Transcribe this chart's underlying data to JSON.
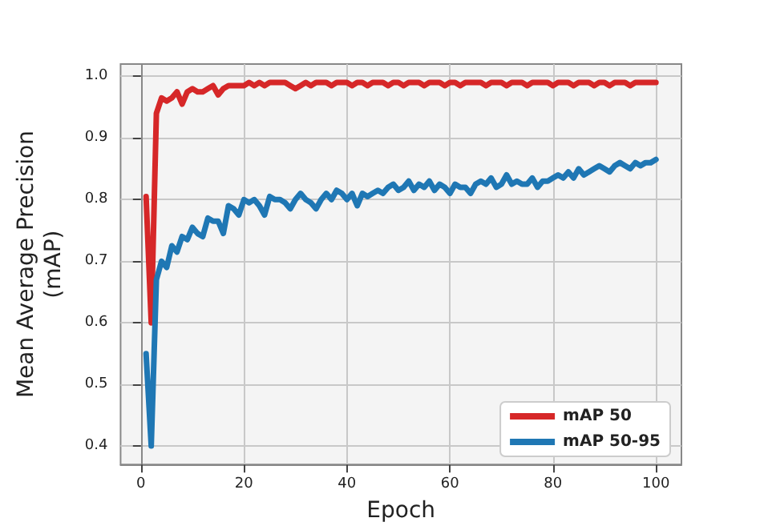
{
  "chart_data": {
    "type": "line",
    "xlabel": "Epoch",
    "ylabel": "Mean Average Precision\n(mAP)",
    "x": [
      1,
      2,
      3,
      4,
      5,
      6,
      7,
      8,
      9,
      10,
      11,
      12,
      13,
      14,
      15,
      16,
      17,
      18,
      19,
      20,
      21,
      22,
      23,
      24,
      25,
      26,
      27,
      28,
      29,
      30,
      31,
      32,
      33,
      34,
      35,
      36,
      37,
      38,
      39,
      40,
      41,
      42,
      43,
      44,
      45,
      46,
      47,
      48,
      49,
      50,
      51,
      52,
      53,
      54,
      55,
      56,
      57,
      58,
      59,
      60,
      61,
      62,
      63,
      64,
      65,
      66,
      67,
      68,
      69,
      70,
      71,
      72,
      73,
      74,
      75,
      76,
      77,
      78,
      79,
      80,
      81,
      82,
      83,
      84,
      85,
      86,
      87,
      88,
      89,
      90,
      91,
      92,
      93,
      94,
      95,
      96,
      97,
      98,
      99,
      100
    ],
    "series": [
      {
        "name": "mAP 50",
        "color": "#d62728",
        "values": [
          0.805,
          0.6,
          0.94,
          0.965,
          0.96,
          0.965,
          0.975,
          0.955,
          0.975,
          0.98,
          0.975,
          0.975,
          0.98,
          0.985,
          0.97,
          0.98,
          0.985,
          0.985,
          0.985,
          0.985,
          0.99,
          0.985,
          0.99,
          0.985,
          0.99,
          0.99,
          0.99,
          0.99,
          0.985,
          0.98,
          0.985,
          0.99,
          0.985,
          0.99,
          0.99,
          0.99,
          0.985,
          0.99,
          0.99,
          0.99,
          0.985,
          0.99,
          0.99,
          0.985,
          0.99,
          0.99,
          0.99,
          0.985,
          0.99,
          0.99,
          0.985,
          0.99,
          0.99,
          0.99,
          0.985,
          0.99,
          0.99,
          0.99,
          0.985,
          0.99,
          0.99,
          0.985,
          0.99,
          0.99,
          0.99,
          0.99,
          0.985,
          0.99,
          0.99,
          0.99,
          0.985,
          0.99,
          0.99,
          0.99,
          0.985,
          0.99,
          0.99,
          0.99,
          0.99,
          0.985,
          0.99,
          0.99,
          0.99,
          0.985,
          0.99,
          0.99,
          0.99,
          0.985,
          0.99,
          0.99,
          0.985,
          0.99,
          0.99,
          0.99,
          0.985,
          0.99,
          0.99,
          0.99,
          0.99,
          0.99
        ]
      },
      {
        "name": "mAP 50-95",
        "color": "#1f77b4",
        "values": [
          0.55,
          0.4,
          0.67,
          0.7,
          0.69,
          0.725,
          0.715,
          0.74,
          0.735,
          0.755,
          0.745,
          0.74,
          0.77,
          0.765,
          0.765,
          0.745,
          0.79,
          0.785,
          0.775,
          0.8,
          0.795,
          0.8,
          0.79,
          0.775,
          0.805,
          0.8,
          0.8,
          0.795,
          0.785,
          0.8,
          0.81,
          0.8,
          0.795,
          0.785,
          0.8,
          0.81,
          0.8,
          0.815,
          0.81,
          0.8,
          0.81,
          0.79,
          0.81,
          0.805,
          0.81,
          0.815,
          0.81,
          0.82,
          0.825,
          0.815,
          0.82,
          0.83,
          0.815,
          0.825,
          0.82,
          0.83,
          0.815,
          0.825,
          0.82,
          0.81,
          0.825,
          0.82,
          0.82,
          0.81,
          0.825,
          0.83,
          0.825,
          0.835,
          0.82,
          0.825,
          0.84,
          0.825,
          0.83,
          0.825,
          0.825,
          0.835,
          0.82,
          0.83,
          0.83,
          0.835,
          0.84,
          0.835,
          0.845,
          0.835,
          0.85,
          0.84,
          0.845,
          0.85,
          0.855,
          0.85,
          0.845,
          0.855,
          0.86,
          0.855,
          0.85,
          0.86,
          0.855,
          0.86,
          0.86,
          0.865
        ]
      }
    ],
    "xlim": [
      -3.95,
      104.95
    ],
    "ylim": [
      0.37,
      1.02
    ],
    "xticks": [
      0,
      20,
      40,
      60,
      80,
      100
    ],
    "yticks": [
      {
        "value": 0.4,
        "label": "0.4"
      },
      {
        "value": 0.5,
        "label": "0.5"
      },
      {
        "value": 0.6,
        "label": "0.6"
      },
      {
        "value": 0.7,
        "label": "0.7"
      },
      {
        "value": 0.8,
        "label": "0.8"
      },
      {
        "value": 0.9,
        "label": "0.9"
      },
      {
        "value": 1.0,
        "label": "1.0"
      }
    ],
    "grid": true,
    "legend": "bottom right",
    "marker": "none",
    "line_style": "solid"
  }
}
